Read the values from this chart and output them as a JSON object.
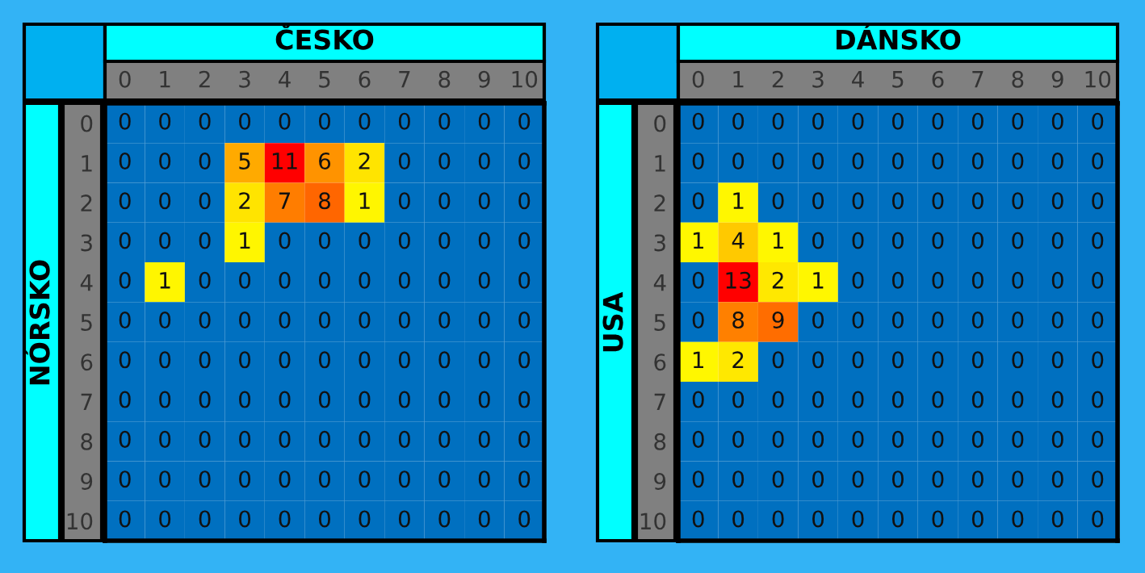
{
  "chart_data": [
    {
      "type": "heatmap",
      "title": "ČESKO",
      "ylabel": "NÓRSKO",
      "data_labels": true,
      "categories": [
        "0",
        "1",
        "2",
        "3",
        "4",
        "5",
        "6",
        "7",
        "8",
        "9",
        "10"
      ],
      "y_categories": [
        "0",
        "1",
        "2",
        "3",
        "4",
        "5",
        "6",
        "7",
        "8",
        "9",
        "10"
      ],
      "cells": [
        [
          0,
          0,
          0,
          0,
          0,
          0,
          0,
          0,
          0,
          0,
          0
        ],
        [
          0,
          0,
          0,
          5,
          11,
          6,
          2,
          0,
          0,
          0,
          0
        ],
        [
          0,
          0,
          0,
          2,
          7,
          8,
          1,
          0,
          0,
          0,
          0
        ],
        [
          0,
          0,
          0,
          1,
          0,
          0,
          0,
          0,
          0,
          0,
          0
        ],
        [
          0,
          1,
          0,
          0,
          0,
          0,
          0,
          0,
          0,
          0,
          0
        ],
        [
          0,
          0,
          0,
          0,
          0,
          0,
          0,
          0,
          0,
          0,
          0
        ],
        [
          0,
          0,
          0,
          0,
          0,
          0,
          0,
          0,
          0,
          0,
          0
        ],
        [
          0,
          0,
          0,
          0,
          0,
          0,
          0,
          0,
          0,
          0,
          0
        ],
        [
          0,
          0,
          0,
          0,
          0,
          0,
          0,
          0,
          0,
          0,
          0
        ],
        [
          0,
          0,
          0,
          0,
          0,
          0,
          0,
          0,
          0,
          0,
          0
        ],
        [
          0,
          0,
          0,
          0,
          0,
          0,
          0,
          0,
          0,
          0,
          0
        ]
      ]
    },
    {
      "type": "heatmap",
      "title": "DÁNSKO",
      "ylabel": "USA",
      "data_labels": true,
      "categories": [
        "0",
        "1",
        "2",
        "3",
        "4",
        "5",
        "6",
        "7",
        "8",
        "9",
        "10"
      ],
      "y_categories": [
        "0",
        "1",
        "2",
        "3",
        "4",
        "5",
        "6",
        "7",
        "8",
        "9",
        "10"
      ],
      "cells": [
        [
          0,
          0,
          0,
          0,
          0,
          0,
          0,
          0,
          0,
          0,
          0
        ],
        [
          0,
          0,
          0,
          0,
          0,
          0,
          0,
          0,
          0,
          0,
          0
        ],
        [
          0,
          1,
          0,
          0,
          0,
          0,
          0,
          0,
          0,
          0,
          0
        ],
        [
          1,
          4,
          1,
          0,
          0,
          0,
          0,
          0,
          0,
          0,
          0
        ],
        [
          0,
          13,
          2,
          1,
          0,
          0,
          0,
          0,
          0,
          0,
          0
        ],
        [
          0,
          8,
          9,
          0,
          0,
          0,
          0,
          0,
          0,
          0,
          0
        ],
        [
          1,
          2,
          0,
          0,
          0,
          0,
          0,
          0,
          0,
          0,
          0
        ],
        [
          0,
          0,
          0,
          0,
          0,
          0,
          0,
          0,
          0,
          0,
          0
        ],
        [
          0,
          0,
          0,
          0,
          0,
          0,
          0,
          0,
          0,
          0,
          0
        ],
        [
          0,
          0,
          0,
          0,
          0,
          0,
          0,
          0,
          0,
          0,
          0
        ],
        [
          0,
          0,
          0,
          0,
          0,
          0,
          0,
          0,
          0,
          0,
          0
        ]
      ]
    }
  ]
}
